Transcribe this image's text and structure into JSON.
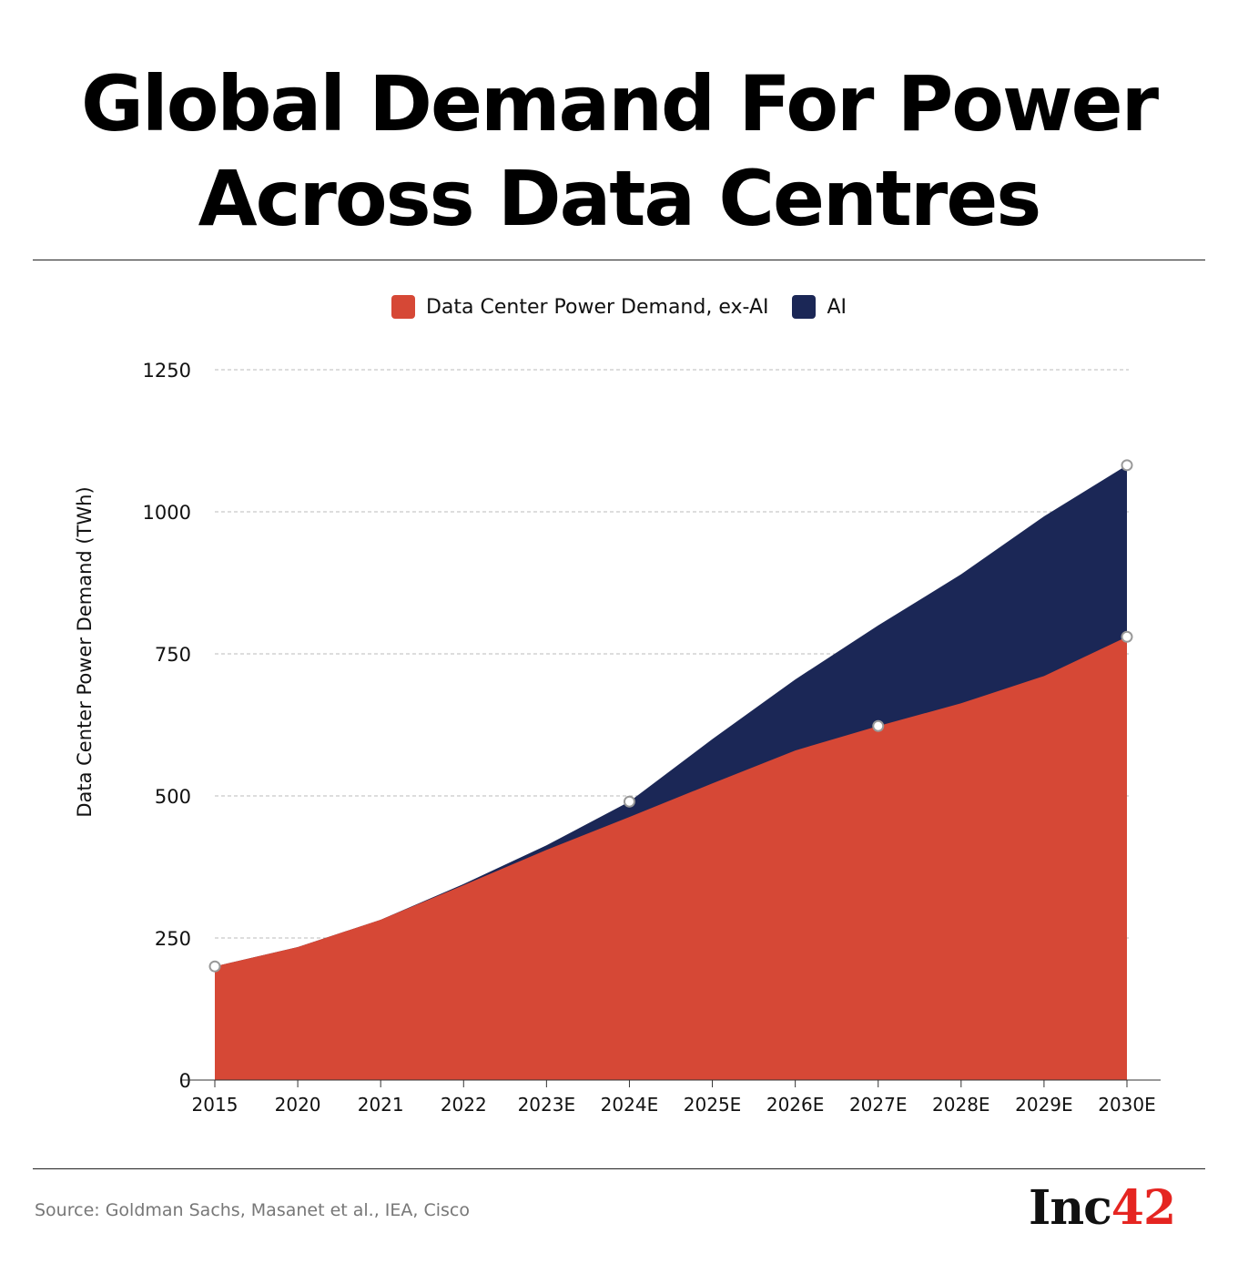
{
  "title": "Global Demand For Power Across Data Centres",
  "source": "Source: Goldman Sachs, Masanet et al., IEA, Cisco",
  "logo": {
    "text": "Inc42",
    "part1": "Inc",
    "part2": "42"
  },
  "chart_data": {
    "type": "area",
    "stacked": true,
    "title": "Global Demand For Power Across Data Centres",
    "xlabel": "",
    "ylabel": "Data Center Power Demand (TWh)",
    "ylim": [
      0,
      1250
    ],
    "yticks": [
      0,
      250,
      500,
      750,
      1000,
      1250
    ],
    "grid": true,
    "legend_position": "top",
    "categories": [
      "2015",
      "2020",
      "2021",
      "2022",
      "2023E",
      "2024E",
      "2025E",
      "2026E",
      "2027E",
      "2028E",
      "2029E",
      "2030E"
    ],
    "series": [
      {
        "name": "Data Center Power Demand, ex-AI",
        "color": "#d64836",
        "values": [
          200,
          234,
          282,
          343,
          405,
          463,
          522,
          580,
          623,
          663,
          711,
          780
        ]
      },
      {
        "name": "AI",
        "color": "#1b2756",
        "values": [
          0,
          0,
          0,
          2,
          8,
          27,
          78,
          125,
          177,
          227,
          281,
          302
        ]
      }
    ]
  }
}
